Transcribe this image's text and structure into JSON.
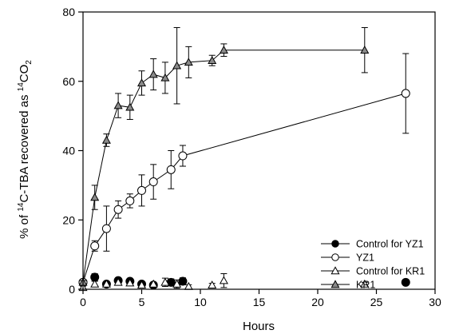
{
  "chart_data": {
    "type": "scatter",
    "title": "",
    "xlabel": "Hours",
    "ylabel_parts": {
      "pre": "% of ",
      "sup1": "14",
      "mid": "C-TBA recovered as ",
      "sup2": "14",
      "post": "CO",
      "sub": "2"
    },
    "xlim": [
      0,
      30
    ],
    "ylim": [
      0,
      80
    ],
    "xticks": [
      0,
      5,
      10,
      15,
      20,
      25,
      30
    ],
    "yticks": [
      0,
      20,
      40,
      60,
      80
    ],
    "grid": false,
    "legend_position": "lower-right",
    "series": [
      {
        "name": "Control for YZ1",
        "marker": "circle-filled",
        "line": false,
        "points": [
          {
            "x": 0,
            "y": 2.0,
            "err": 0.6
          },
          {
            "x": 1,
            "y": 3.5,
            "err": 1.0
          },
          {
            "x": 2,
            "y": 1.5,
            "err": 0.6
          },
          {
            "x": 3,
            "y": 2.5,
            "err": 0.8
          },
          {
            "x": 4,
            "y": 2.3,
            "err": 0.6
          },
          {
            "x": 5,
            "y": 1.5,
            "err": 0.6
          },
          {
            "x": 6,
            "y": 1.2,
            "err": 0.5
          },
          {
            "x": 7.5,
            "y": 2.0,
            "err": 1.0
          },
          {
            "x": 8.5,
            "y": 2.3,
            "err": 1.0
          },
          {
            "x": 27.5,
            "y": 2.0,
            "err": 0.3
          }
        ]
      },
      {
        "name": "YZ1",
        "marker": "circle-open",
        "line": true,
        "points": [
          {
            "x": 0,
            "y": 2.0,
            "err": 0.8
          },
          {
            "x": 1,
            "y": 12.5,
            "err": 1.5
          },
          {
            "x": 2,
            "y": 17.5,
            "err": 6.5
          },
          {
            "x": 3,
            "y": 23.0,
            "err": 2.5
          },
          {
            "x": 4,
            "y": 25.5,
            "err": 2.0
          },
          {
            "x": 5,
            "y": 28.5,
            "err": 4.5
          },
          {
            "x": 6,
            "y": 31.0,
            "err": 5.0
          },
          {
            "x": 7.5,
            "y": 34.5,
            "err": 5.5
          },
          {
            "x": 8.5,
            "y": 38.5,
            "err": 3.0
          },
          {
            "x": 27.5,
            "y": 56.5,
            "err": 11.5
          }
        ]
      },
      {
        "name": "Control for KR1",
        "marker": "triangle-open",
        "line": false,
        "points": [
          {
            "x": 0,
            "y": 0.5,
            "err": 0.4
          },
          {
            "x": 1,
            "y": 1.5,
            "err": 0.8
          },
          {
            "x": 2,
            "y": 1.5,
            "err": 0.5
          },
          {
            "x": 3,
            "y": 2.0,
            "err": 0.5
          },
          {
            "x": 4,
            "y": 1.8,
            "err": 0.5
          },
          {
            "x": 5,
            "y": 1.2,
            "err": 0.5
          },
          {
            "x": 6,
            "y": 1.5,
            "err": 0.5
          },
          {
            "x": 7,
            "y": 2.0,
            "err": 1.2
          },
          {
            "x": 8,
            "y": 1.5,
            "err": 1.2
          },
          {
            "x": 9,
            "y": 0.8,
            "err": 0.5
          },
          {
            "x": 11,
            "y": 1.2,
            "err": 0.5
          },
          {
            "x": 12,
            "y": 2.5,
            "err": 2.0
          },
          {
            "x": 24,
            "y": 1.5,
            "err": 0.5
          }
        ]
      },
      {
        "name": "KR1",
        "marker": "triangle-gray",
        "line": true,
        "points": [
          {
            "x": 0,
            "y": 2.0,
            "err": 0.5
          },
          {
            "x": 1,
            "y": 26.5,
            "err": 3.5
          },
          {
            "x": 2,
            "y": 43.0,
            "err": 1.8
          },
          {
            "x": 3,
            "y": 53.0,
            "err": 3.5
          },
          {
            "x": 4,
            "y": 52.5,
            "err": 3.5
          },
          {
            "x": 5,
            "y": 59.5,
            "err": 3.5
          },
          {
            "x": 6,
            "y": 62.0,
            "err": 4.5
          },
          {
            "x": 7,
            "y": 61.0,
            "err": 4.5
          },
          {
            "x": 8,
            "y": 64.5,
            "err": 11.0
          },
          {
            "x": 9,
            "y": 65.5,
            "err": 4.5
          },
          {
            "x": 11,
            "y": 66.0,
            "err": 1.5
          },
          {
            "x": 12,
            "y": 69.0,
            "err": 1.8
          },
          {
            "x": 24,
            "y": 69.0,
            "err": 6.5
          }
        ]
      }
    ]
  }
}
